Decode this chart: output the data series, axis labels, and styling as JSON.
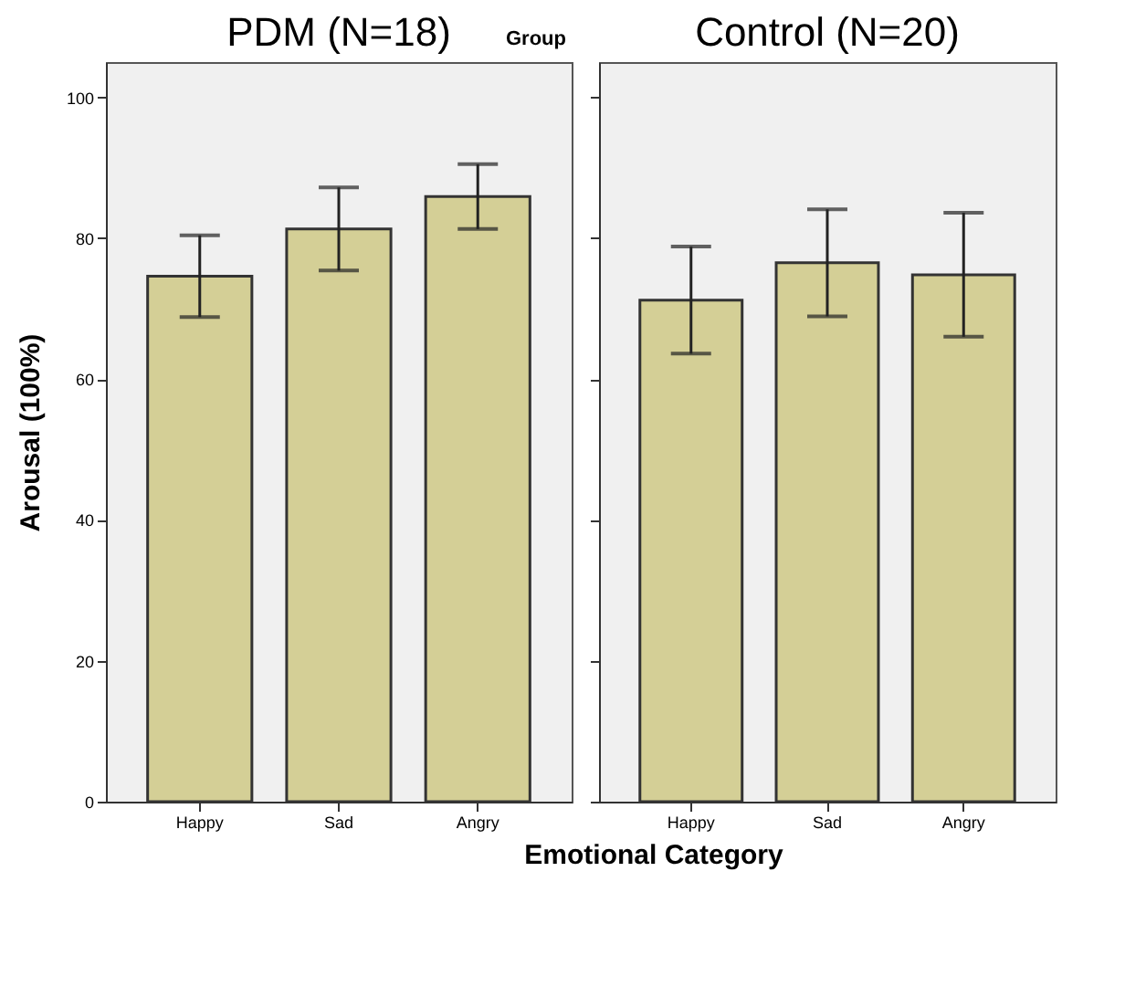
{
  "chart_data": [
    {
      "type": "bar",
      "title": "PDM (N=18)",
      "ylabel": "Arousal (100%)",
      "xlabel": "Emotional Category",
      "annotations": [
        "Group"
      ],
      "categories": [
        "Happy",
        "Sad",
        "Angry"
      ],
      "values": [
        74.6,
        81.3,
        85.9
      ],
      "errors": [
        5.8,
        5.9,
        4.6
      ],
      "color": "#d4cf96",
      "ylim": [
        0,
        105
      ],
      "yticks": [
        0,
        20,
        40,
        60,
        80,
        100
      ],
      "grid": false
    },
    {
      "type": "bar",
      "title": "Control (N=20)",
      "categories": [
        "Happy",
        "Sad",
        "Angry"
      ],
      "values": [
        71.2,
        76.5,
        74.8
      ],
      "errors": [
        7.6,
        7.6,
        8.8
      ],
      "color": "#d4cf96",
      "ylim": [
        0,
        105
      ],
      "yticks": [
        0,
        20,
        40,
        60,
        80,
        100
      ],
      "grid": false,
      "tick_labels": "x"
    }
  ]
}
